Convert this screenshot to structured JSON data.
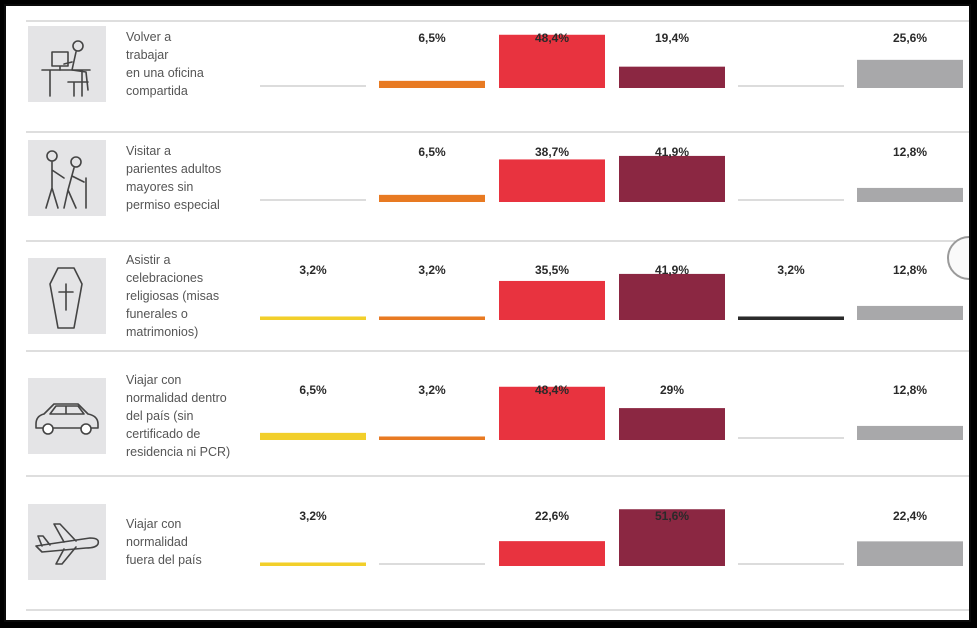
{
  "chart_data": {
    "type": "bar",
    "categories": [
      "Volver a trabajar en una oficina compartida",
      "Visitar a parientes adultos mayores sin permiso especial",
      "Asistir a celebraciones religiosas (misas funerales o matrimonios)",
      "Viajar con normalidad dentro del país (sin certificado de residencia ni PCR)",
      "Viajar con normalidad fuera del país"
    ],
    "category_lines": [
      [
        "Volver a",
        "trabajar",
        "en una oficina",
        "compartida"
      ],
      [
        "Visitar a",
        "parientes adultos",
        "mayores sin",
        "permiso especial"
      ],
      [
        "Asistir a",
        "celebraciones",
        "religiosas (misas",
        "funerales o",
        "matrimonios)"
      ],
      [
        "Viajar con",
        "normalidad dentro",
        "del país (sin",
        "certificado de",
        "residencia ni PCR)"
      ],
      [
        "Viajar con",
        "normalidad",
        "fuera del país"
      ]
    ],
    "icons": [
      "office-worker-icon",
      "elderly-visit-icon",
      "coffin-cross-icon",
      "car-icon",
      "airplane-icon"
    ],
    "series": [
      {
        "color": "#f2cf2a",
        "values": [
          0,
          0,
          3.2,
          6.5,
          3.2
        ],
        "labels": [
          "",
          "",
          "3,2%",
          "6,5%",
          "3,2%"
        ]
      },
      {
        "color": "#e87a22",
        "values": [
          6.5,
          6.5,
          3.2,
          3.2,
          0
        ],
        "labels": [
          "6,5%",
          "6,5%",
          "3,2%",
          "3,2%",
          ""
        ]
      },
      {
        "color": "#e8333f",
        "values": [
          48.4,
          38.7,
          35.5,
          48.4,
          22.6
        ],
        "labels": [
          "48,4%",
          "38,7%",
          "35,5%",
          "48,4%",
          "22,6%"
        ]
      },
      {
        "color": "#8b2742",
        "values": [
          19.4,
          41.9,
          41.9,
          29,
          51.6
        ],
        "labels": [
          "19,4%",
          "41,9%",
          "41,9%",
          "29%",
          "51,6%"
        ]
      },
      {
        "color": "#2b2b2b",
        "values": [
          0,
          0,
          3.2,
          0,
          0
        ],
        "labels": [
          "",
          "",
          "3,2%",
          "",
          ""
        ]
      },
      {
        "color": "#a8a8aa",
        "values": [
          25.6,
          12.8,
          12.8,
          12.8,
          22.4
        ],
        "labels": [
          "25,6%",
          "12,8%",
          "12,8%",
          "12,8%",
          "22,4%"
        ]
      }
    ],
    "xlabel": "",
    "ylabel": "",
    "legend": "none",
    "grid": false
  }
}
